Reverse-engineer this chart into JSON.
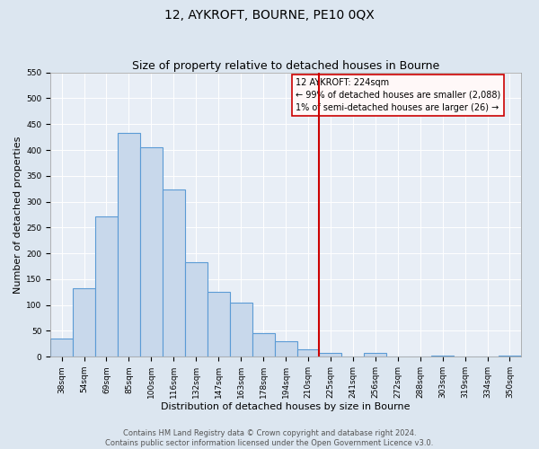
{
  "title": "12, AYKROFT, BOURNE, PE10 0QX",
  "subtitle": "Size of property relative to detached houses in Bourne",
  "xlabel": "Distribution of detached houses by size in Bourne",
  "ylabel": "Number of detached properties",
  "footer_line1": "Contains HM Land Registry data © Crown copyright and database right 2024.",
  "footer_line2": "Contains public sector information licensed under the Open Government Licence v3.0.",
  "bin_labels": [
    "38sqm",
    "54sqm",
    "69sqm",
    "85sqm",
    "100sqm",
    "116sqm",
    "132sqm",
    "147sqm",
    "163sqm",
    "178sqm",
    "194sqm",
    "210sqm",
    "225sqm",
    "241sqm",
    "256sqm",
    "272sqm",
    "288sqm",
    "303sqm",
    "319sqm",
    "334sqm",
    "350sqm"
  ],
  "bar_values": [
    35,
    133,
    272,
    433,
    405,
    323,
    182,
    125,
    104,
    46,
    30,
    15,
    7,
    0,
    8,
    0,
    0,
    3,
    0,
    0,
    3
  ],
  "bar_color": "#c8d8eb",
  "bar_edge_color": "#5b9bd5",
  "bar_linewidth": 0.8,
  "vline_bin_index": 12,
  "vline_color": "#cc0000",
  "vline_linewidth": 1.5,
  "annotation_title": "12 AYKROFT: 224sqm",
  "annotation_line1": "← 99% of detached houses are smaller (2,088)",
  "annotation_line2": "1% of semi-detached houses are larger (26) →",
  "annotation_box_facecolor": "#fff8f8",
  "annotation_box_edgecolor": "#cc0000",
  "ylim": [
    0,
    550
  ],
  "yticks": [
    0,
    50,
    100,
    150,
    200,
    250,
    300,
    350,
    400,
    450,
    500,
    550
  ],
  "bg_color": "#dce6f0",
  "plot_bg_color": "#e8eef6",
  "grid_color": "#ffffff",
  "title_fontsize": 10,
  "subtitle_fontsize": 9,
  "label_fontsize": 8,
  "tick_fontsize": 6.5,
  "annotation_fontsize": 7,
  "footer_fontsize": 6
}
